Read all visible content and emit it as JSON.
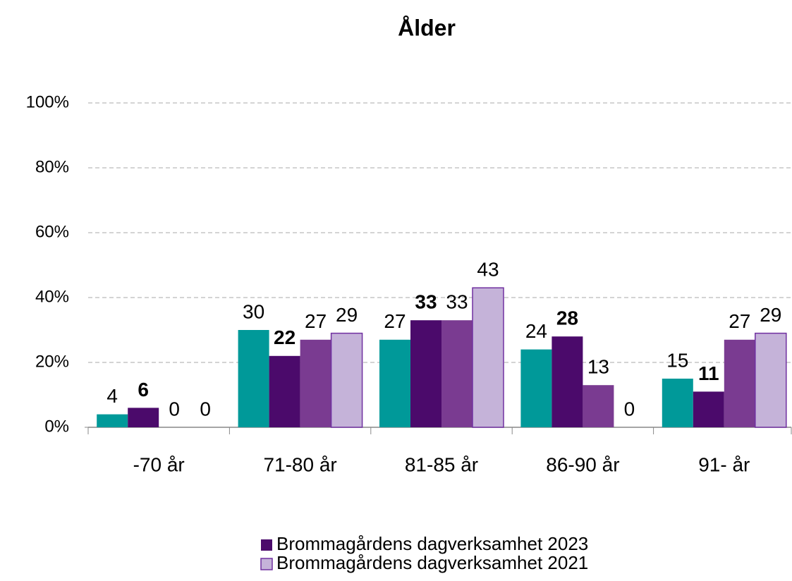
{
  "chart_data": {
    "type": "bar",
    "title": "Ålder",
    "categories": [
      "-70 år",
      "71-80 år",
      "81-85 år",
      "86-90 år",
      "91- år"
    ],
    "series": [
      {
        "color": "#009999",
        "values": [
          4,
          30,
          27,
          24,
          15
        ]
      },
      {
        "name": "Brommagårdens dagverksamhet 2023",
        "color": "#4b0a6b",
        "label_bold": true,
        "values": [
          6,
          22,
          33,
          28,
          11
        ]
      },
      {
        "color": "#7a3b91",
        "values": [
          0,
          27,
          33,
          13,
          27
        ]
      },
      {
        "name": "Brommagårdens dagverksamhet 2021",
        "color": "#c5b3d9",
        "edge": "#7030a0",
        "values": [
          0,
          29,
          43,
          0,
          29
        ]
      }
    ],
    "ylim": [
      0,
      100
    ],
    "yticks": [
      {
        "value": 0,
        "label": "0%"
      },
      {
        "value": 20,
        "label": "20%"
      },
      {
        "value": 40,
        "label": "40%"
      },
      {
        "value": 60,
        "label": "60%"
      },
      {
        "value": 80,
        "label": "80%"
      },
      {
        "value": 100,
        "label": "100%"
      }
    ],
    "grid": true,
    "legend": "bottom"
  }
}
